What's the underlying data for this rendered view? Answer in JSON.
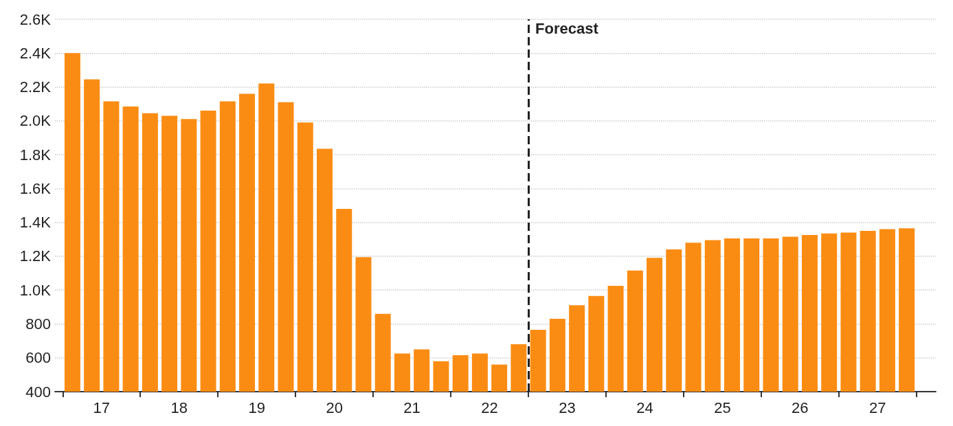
{
  "chart_data": {
    "type": "bar",
    "x": [
      16.625,
      16.875,
      17.125,
      17.375,
      17.625,
      17.875,
      18.125,
      18.375,
      18.625,
      18.875,
      19.125,
      19.375,
      19.625,
      19.875,
      20.125,
      20.375,
      20.625,
      20.875,
      21.125,
      21.375,
      21.625,
      21.875,
      22.125,
      22.375,
      22.625,
      22.875,
      23.125,
      23.375,
      23.625,
      23.875,
      24.125,
      24.375,
      24.625,
      24.875,
      25.125,
      25.375,
      25.625,
      25.875,
      26.125,
      26.375,
      26.625,
      26.875,
      27.125,
      27.375
    ],
    "values": [
      2400,
      2245,
      2115,
      2085,
      2045,
      2030,
      2010,
      2060,
      2115,
      2160,
      2220,
      2110,
      1990,
      1835,
      1480,
      1195,
      860,
      625,
      650,
      580,
      615,
      625,
      560,
      680,
      765,
      830,
      910,
      965,
      1025,
      1115,
      1190,
      1240,
      1280,
      1295,
      1305,
      1305,
      1305,
      1315,
      1325,
      1335,
      1340,
      1350,
      1360,
      1365
    ],
    "color": "#fb8c13",
    "xlim": [
      16.4,
      27.75
    ],
    "xticks": [
      {
        "value": 16.5,
        "label": null
      },
      17,
      {
        "value": 17.5,
        "label": null
      },
      18,
      {
        "value": 18.5,
        "label": null
      },
      19,
      {
        "value": 19.5,
        "label": null
      },
      20,
      {
        "value": 20.5,
        "label": null
      },
      21,
      {
        "value": 21.5,
        "label": null
      },
      22,
      {
        "value": 22.5,
        "label": null
      },
      23,
      {
        "value": 23.5,
        "label": null
      },
      24,
      {
        "value": 24.5,
        "label": null
      },
      25,
      {
        "value": 25.5,
        "label": null
      },
      26,
      {
        "value": 26.5,
        "label": null
      },
      27,
      {
        "value": 27.5,
        "label": null
      }
    ],
    "ylim": [
      400,
      2600
    ],
    "yticks": [
      400,
      600,
      800,
      {
        "value": 1000,
        "label": "1.0K"
      },
      {
        "value": 1200,
        "label": "1.2K"
      },
      {
        "value": 1400,
        "label": "1.4K"
      },
      {
        "value": 1600,
        "label": "1.6K"
      },
      {
        "value": 1800,
        "label": "1.8K"
      },
      {
        "value": 2000,
        "label": "2.0K"
      },
      {
        "value": 2200,
        "label": "2.2K"
      },
      {
        "value": 2400,
        "label": "2.4K"
      },
      {
        "value": 2600,
        "label": "2.6K"
      }
    ],
    "grid": "y",
    "ref_lines": [
      {
        "axis": "x",
        "value": 22.5,
        "label": "Forecast",
        "color": "#222222",
        "line_style": "dashed"
      }
    ]
  }
}
